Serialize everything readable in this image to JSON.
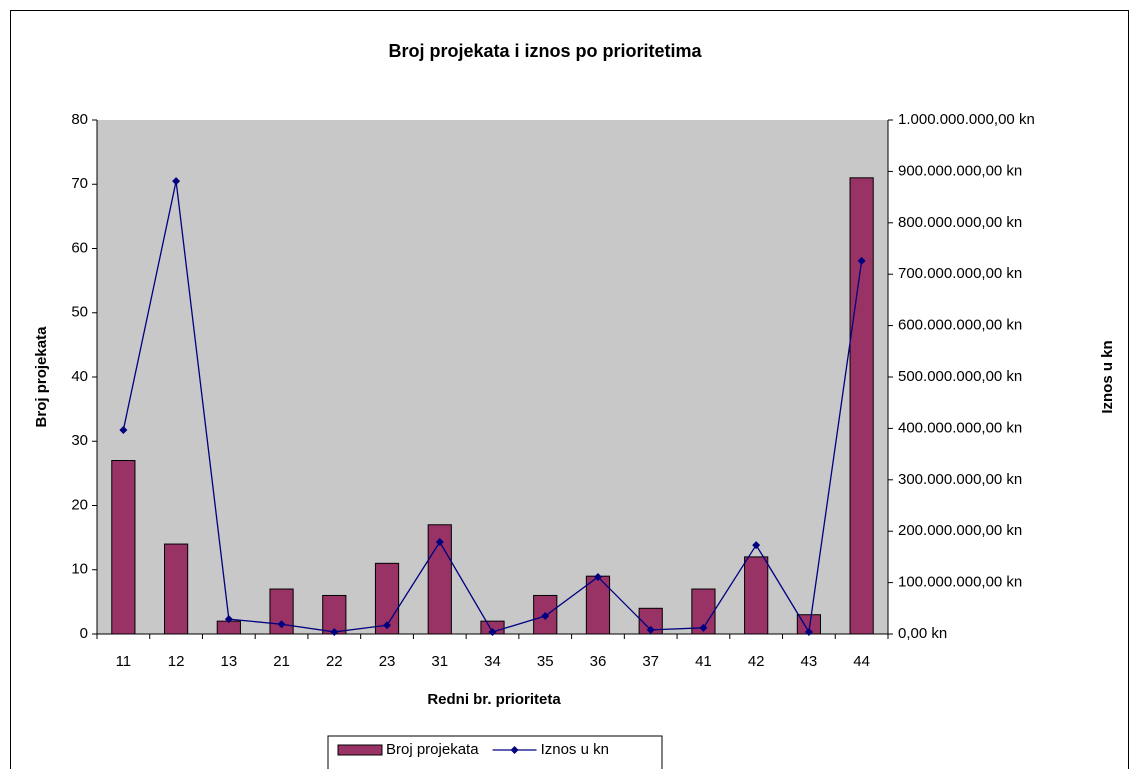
{
  "chart_data": {
    "type": "bar-line",
    "title": "Broj projekata i iznos po prioritetima",
    "x_label": "Redni br. prioriteta",
    "y_label": "Broj projekata",
    "y2_label": "Iznos u kn",
    "categories": [
      "11",
      "12",
      "13",
      "21",
      "22",
      "23",
      "31",
      "34",
      "35",
      "36",
      "37",
      "41",
      "42",
      "43",
      "44"
    ],
    "series": [
      {
        "name": "Broj projekata",
        "type": "bar",
        "color": "#993366",
        "axis": "y",
        "values": [
          27,
          14,
          2,
          7,
          6,
          11,
          17,
          2,
          6,
          9,
          4,
          7,
          12,
          3,
          71
        ]
      },
      {
        "name": "Iznos u kn",
        "type": "line",
        "color": "#000080",
        "axis": "y2",
        "values": [
          397000000,
          881000000,
          29000000,
          19000000,
          4000000,
          17000000,
          179000000,
          4000000,
          35000000,
          111000000,
          8000000,
          12000000,
          173000000,
          4000000,
          726000000
        ]
      }
    ],
    "ylim": [
      0,
      80
    ],
    "yticks": [
      0,
      10,
      20,
      30,
      40,
      50,
      60,
      70,
      80
    ],
    "y2lim": [
      0,
      1000000000
    ],
    "y2ticks": [
      {
        "value": 0,
        "label": "0,00 kn"
      },
      {
        "value": 100000000,
        "label": "100.000.000,00 kn"
      },
      {
        "value": 200000000,
        "label": "200.000.000,00 kn"
      },
      {
        "value": 300000000,
        "label": "300.000.000,00 kn"
      },
      {
        "value": 400000000,
        "label": "400.000.000,00 kn"
      },
      {
        "value": 500000000,
        "label": "500.000.000,00 kn"
      },
      {
        "value": 600000000,
        "label": "600.000.000,00 kn"
      },
      {
        "value": 700000000,
        "label": "700.000.000,00 kn"
      },
      {
        "value": 800000000,
        "label": "800.000.000,00 kn"
      },
      {
        "value": 900000000,
        "label": "900.000.000,00 kn"
      },
      {
        "value": 1000000000,
        "label": "1.000.000.000,00 kn"
      }
    ],
    "plot_background": "#c8c8c8",
    "legend": "bottom"
  }
}
